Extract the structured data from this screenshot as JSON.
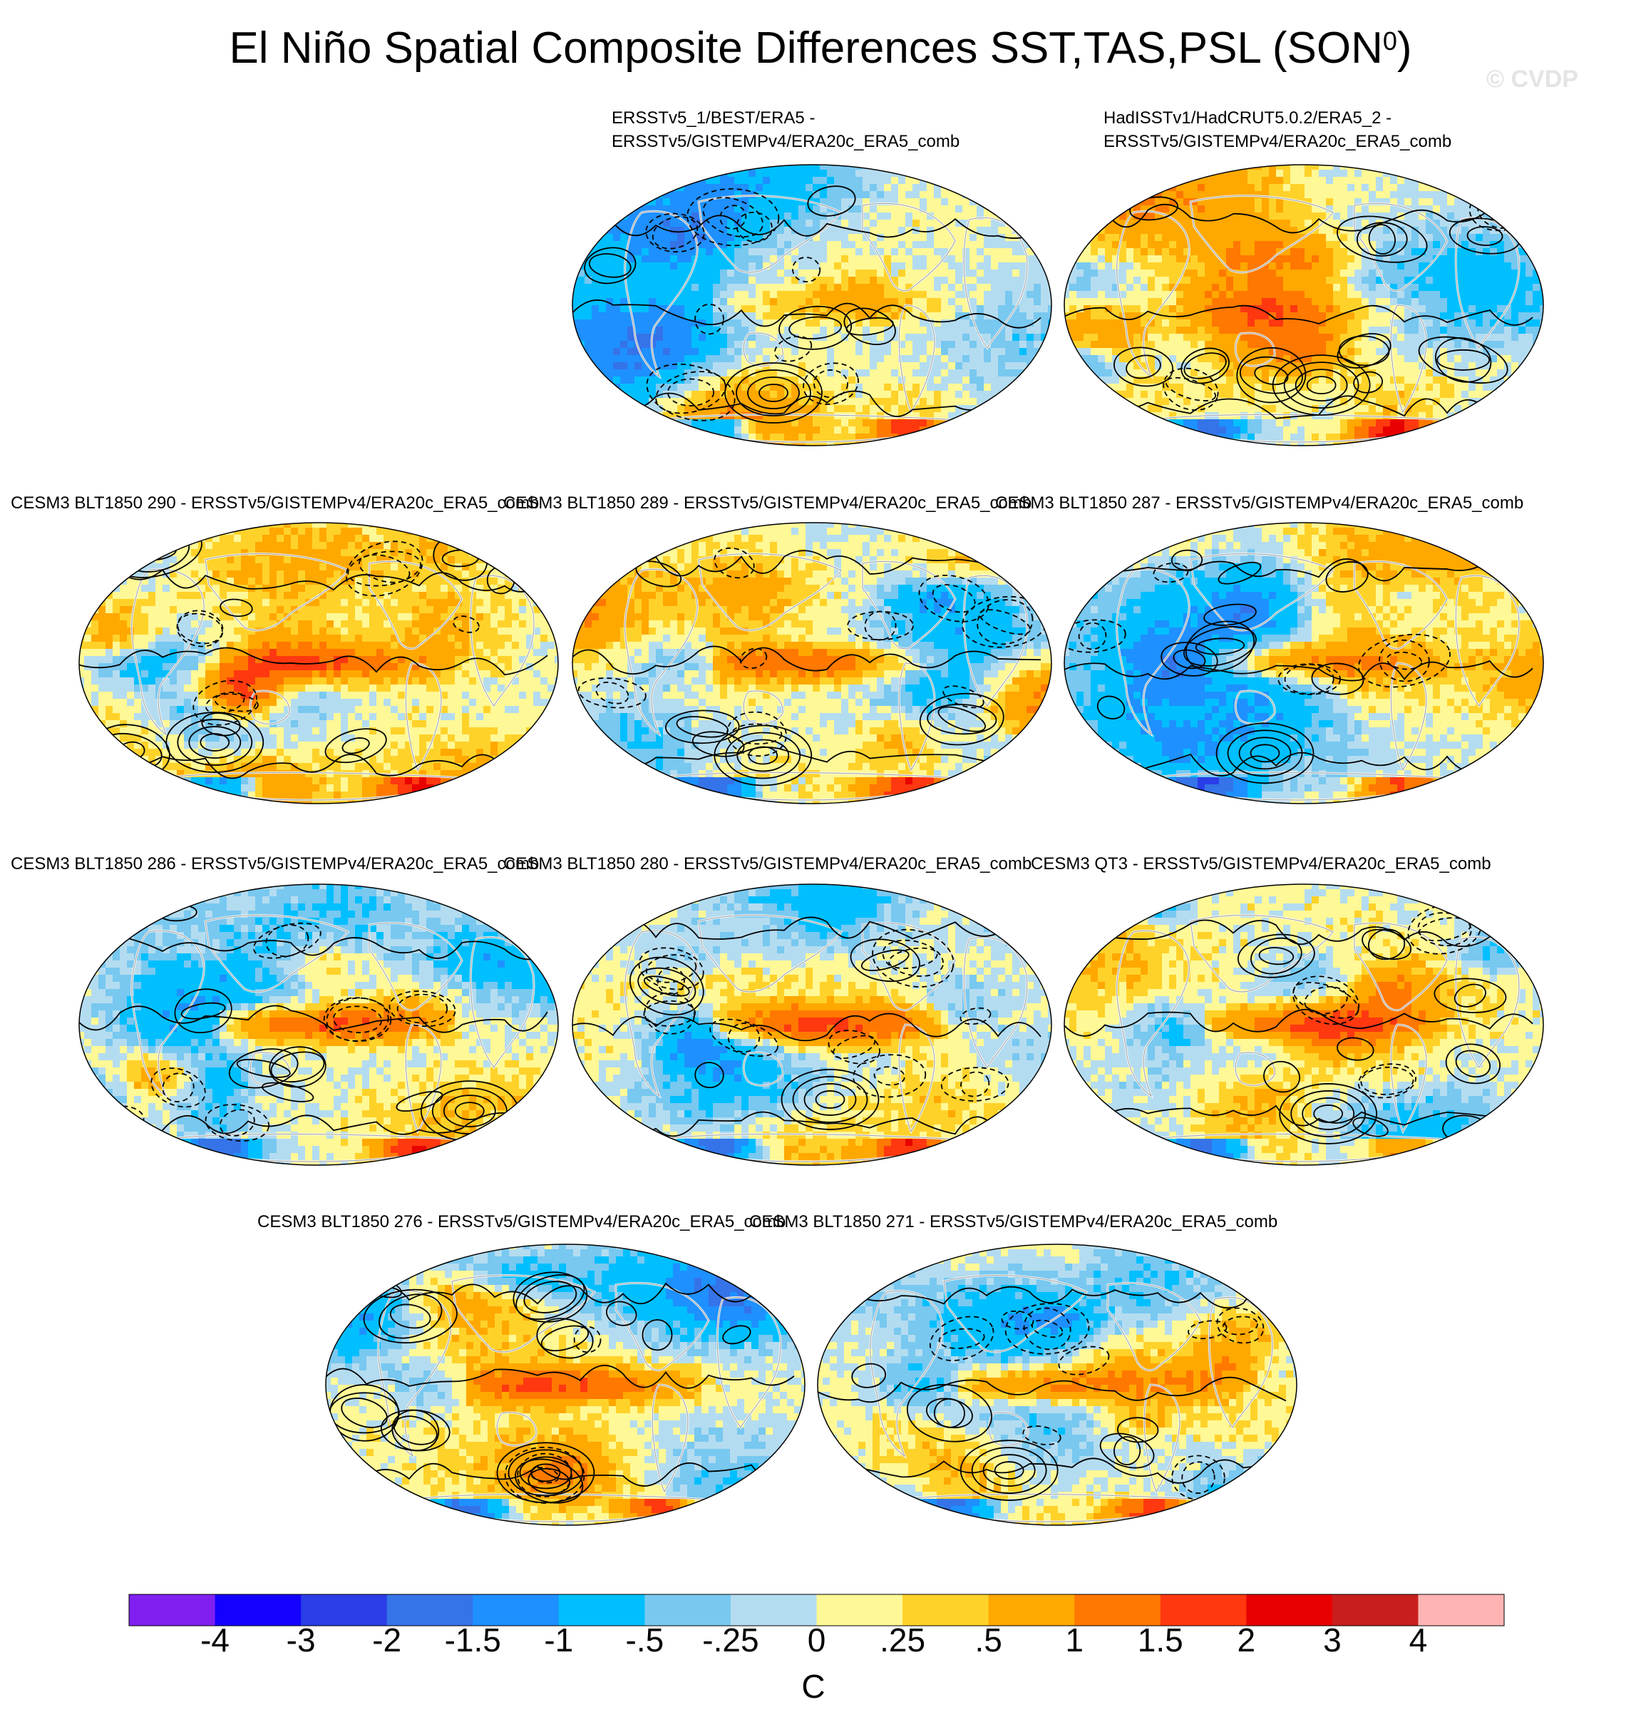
{
  "title": "El Niño Spatial Composite Differences SST,TAS,PSL (SON",
  "title_superscript": "0",
  "title_close": ")",
  "watermark": "© CVDP",
  "chart_data": {
    "type": "heatmap",
    "description_type": "spatial-composite-maps",
    "colorbar": {
      "units": "C",
      "tick_labels": [
        "-4",
        "-3",
        "-2",
        "-1.5",
        "-1",
        "-.5",
        "-.25",
        "0",
        ".25",
        ".5",
        "1",
        "1.5",
        "2",
        "3",
        "4"
      ],
      "colors": [
        "#8020f0",
        "#1400ff",
        "#2a3ee8",
        "#3573e8",
        "#1e90ff",
        "#00bfff",
        "#78c8f0",
        "#b4dcf0",
        "#fff896",
        "#ffd22a",
        "#ffa800",
        "#ff7800",
        "#ff3810",
        "#e80000",
        "#c81e1e",
        "#ffb4b4"
      ]
    },
    "panels": [
      {
        "id": "obs1",
        "title_line1": "ERSSTv5_1/BEST/ERA5 -",
        "title_line2": "ERSSTv5/GISTEMPv4/ERA20c_ERA5_comb",
        "nino": 0.35,
        "seed": 11
      },
      {
        "id": "obs2",
        "title_line1": "HadISSTv1/HadCRUT5.0.2/ERA5_2 -",
        "title_line2": "ERSSTv5/GISTEMPv4/ERA20c_ERA5_comb",
        "nino": 0.3,
        "seed": 23
      },
      {
        "id": "m290",
        "title_line1": "CESM3 BLT1850 290 - ERSSTv5/GISTEMPv4/ERA20c_ERA5_comb",
        "title_line2": "",
        "nino": 0.8,
        "seed": 37
      },
      {
        "id": "m289",
        "title_line1": "CESM3 BLT1850 289 - ERSSTv5/GISTEMPv4/ERA20c_ERA5_comb",
        "title_line2": "",
        "nino": 0.85,
        "seed": 41
      },
      {
        "id": "m287",
        "title_line1": "CESM3 BLT1850 287 - ERSSTv5/GISTEMPv4/ERA20c_ERA5_comb",
        "title_line2": "",
        "nino": 0.75,
        "seed": 53
      },
      {
        "id": "m286",
        "title_line1": "CESM3 BLT1850 286 - ERSSTv5/GISTEMPv4/ERA20c_ERA5_comb",
        "title_line2": "",
        "nino": 0.95,
        "seed": 67
      },
      {
        "id": "m280",
        "title_line1": "CESM3 BLT1850 280 - ERSSTv5/GISTEMPv4/ERA20c_ERA5_comb",
        "title_line2": "",
        "nino": 0.9,
        "seed": 71
      },
      {
        "id": "qt3",
        "title_line1": "CESM3 QT3 - ERSSTv5/GISTEMPv4/ERA20c_ERA5_comb",
        "title_line2": "",
        "nino": 0.8,
        "seed": 83
      },
      {
        "id": "m276",
        "title_line1": "CESM3 BLT1850 276 - ERSSTv5/GISTEMPv4/ERA20c_ERA5_comb",
        "title_line2": "",
        "nino": 0.9,
        "seed": 97
      },
      {
        "id": "m271",
        "title_line1": "CESM3 BLT1850 271 - ERSSTv5/GISTEMPv4/ERA20c_ERA5_comb",
        "title_line2": "",
        "nino": 0.85,
        "seed": 101
      }
    ]
  }
}
